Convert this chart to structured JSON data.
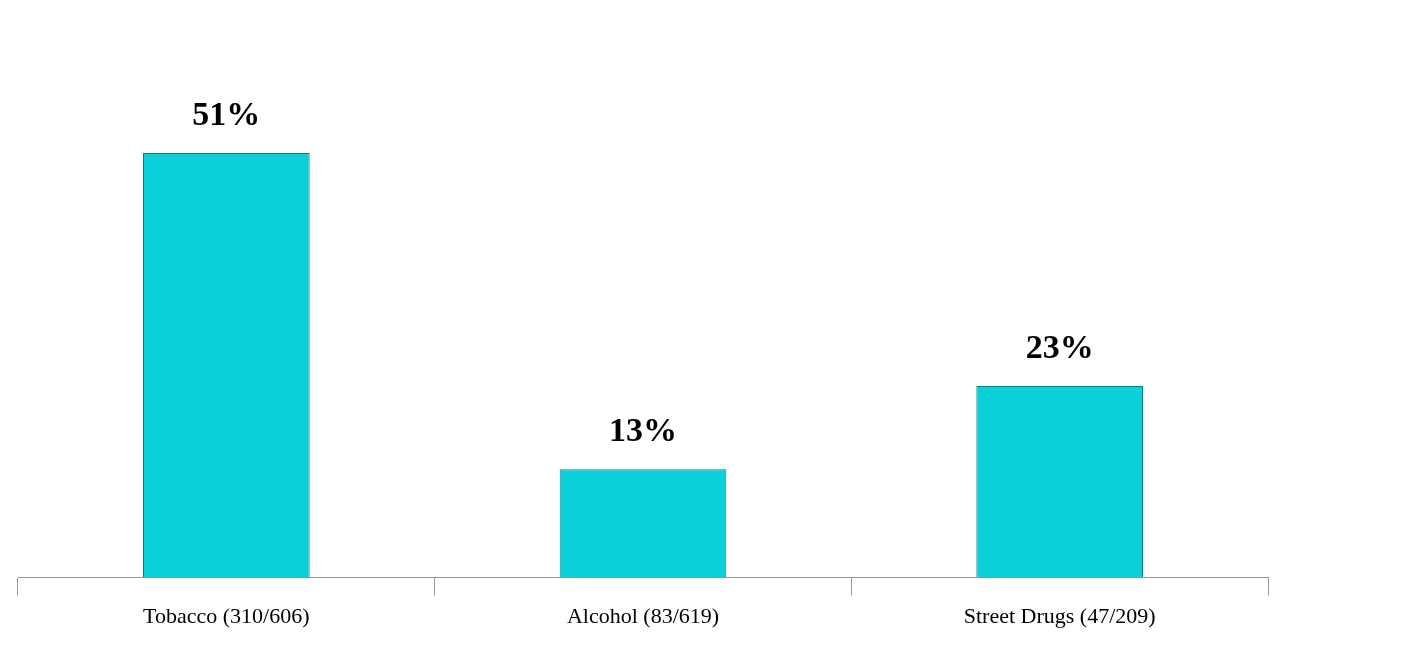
{
  "chart_data": {
    "type": "bar",
    "categories": [
      "Tobacco (310/606)",
      "Alcohol (83/619)",
      "Street Drugs (47/209)"
    ],
    "values": [
      51,
      13,
      23
    ],
    "value_labels": [
      "51%",
      "13%",
      "23%"
    ],
    "color": "#0bd0d9",
    "grid": false,
    "legend": false
  }
}
